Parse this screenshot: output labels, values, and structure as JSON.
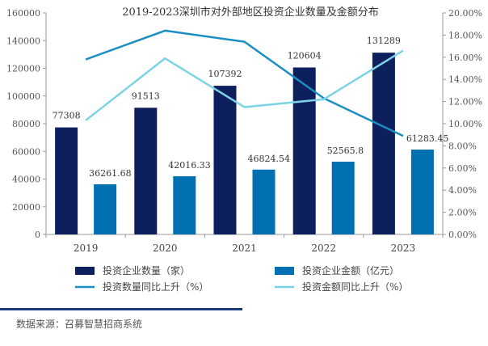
{
  "chart_data": {
    "type": "bar",
    "title": "2019-2023深圳市对外部地区投资企业数量及金额分布",
    "categories": [
      "2019",
      "2020",
      "2021",
      "2022",
      "2023"
    ],
    "y_left": {
      "min": 0,
      "max": 160000,
      "step": 20000,
      "ticks": [
        "0",
        "20000",
        "40000",
        "60000",
        "80000",
        "100000",
        "120000",
        "140000",
        "160000"
      ]
    },
    "y_right": {
      "min": 0,
      "max": 20,
      "step": 2,
      "ticks": [
        "0.00%",
        "2.00%",
        "4.00%",
        "6.00%",
        "8.00%",
        "10.00%",
        "12.00%",
        "14.00%",
        "16.00%",
        "18.00%",
        "20.00%"
      ]
    },
    "bar_series": [
      {
        "name": "投资企业数量（家）",
        "color": "#0d1f5c",
        "values": [
          77308,
          91513,
          107392,
          120604,
          131289
        ],
        "labels": [
          "77308",
          "91513",
          "107392",
          "120604",
          "131289"
        ]
      },
      {
        "name": "投资企业金额（亿元）",
        "color": "#0070b0",
        "values": [
          36261.68,
          42016.33,
          46824.54,
          52565.8,
          61283.45
        ],
        "labels": [
          "36261.68",
          "42016.33",
          "46824.54",
          "52565.8",
          "61283.45"
        ]
      }
    ],
    "line_series": [
      {
        "name": "投资数量同比上升（%）",
        "color": "#1a8fc4",
        "values": [
          15.8,
          18.4,
          17.4,
          12.3,
          8.9
        ]
      },
      {
        "name": "投资金额同比上升（%）",
        "color": "#7dd3e6",
        "values": [
          10.3,
          15.9,
          11.5,
          12.2,
          16.6
        ]
      }
    ],
    "legend_position": "bottom",
    "grid": false
  },
  "source_text": "数据来源：召募智慧招商系统",
  "colors": {
    "divider": "#1a3a7a",
    "axis": "#999999"
  }
}
